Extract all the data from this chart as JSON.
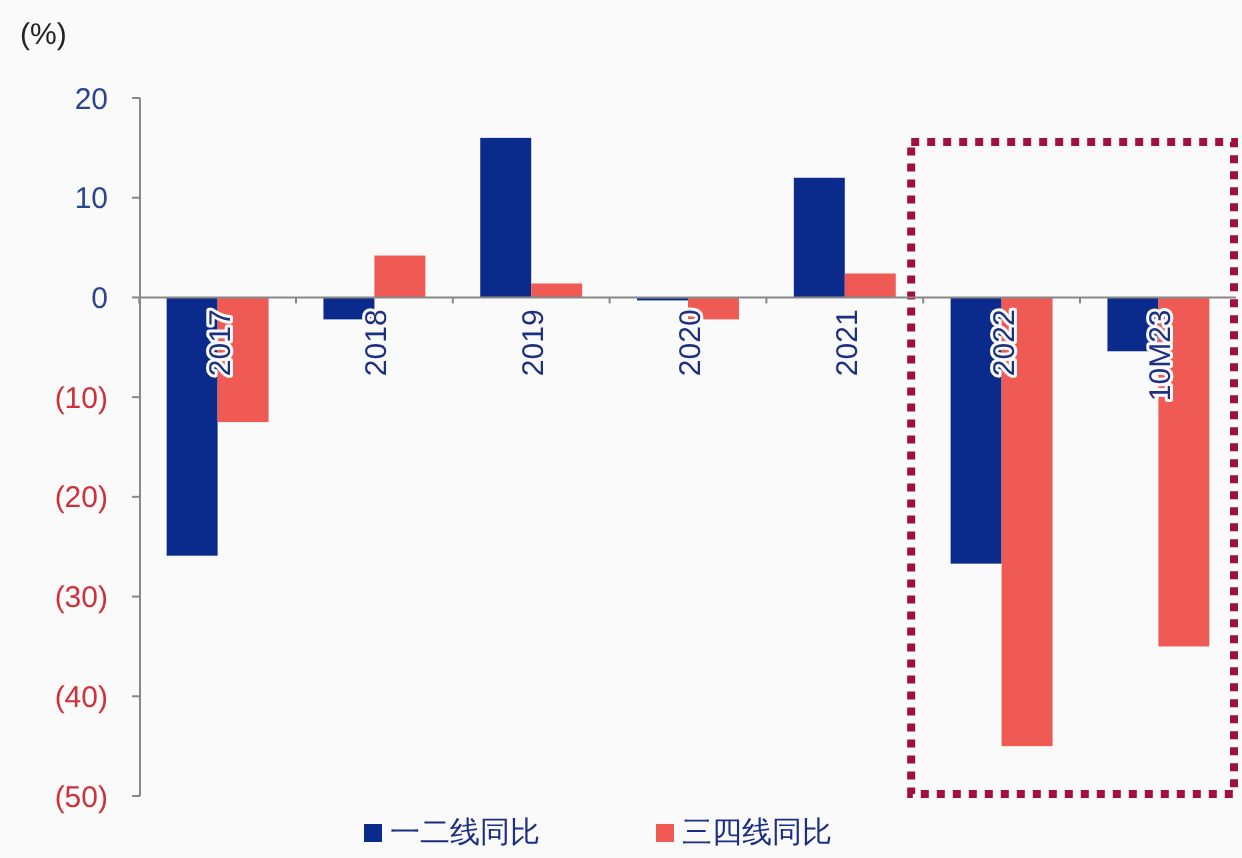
{
  "chart_data": {
    "type": "bar",
    "ylabel": "(%)",
    "categories": [
      "2017",
      "2018",
      "2019",
      "2020",
      "2021",
      "2022",
      "10M23"
    ],
    "series": [
      {
        "name": "一二线同比",
        "color": "#0a2a8c",
        "values": [
          -25.9,
          -2.2,
          16,
          -0.3,
          12,
          -26.7,
          -5.4
        ]
      },
      {
        "name": "三四线同比",
        "color": "#ef5a55",
        "values": [
          -12.5,
          4.2,
          1.4,
          -2.2,
          2.4,
          -45,
          -35
        ]
      }
    ],
    "ylim": [
      -50,
      20
    ],
    "yticks": [
      20,
      10,
      0,
      {
        "value": -10,
        "label": "(10)"
      },
      {
        "value": -20,
        "label": "(20)"
      },
      {
        "value": -30,
        "label": "(30)"
      },
      {
        "value": -40,
        "label": "(40)"
      },
      {
        "value": -50,
        "label": "(50)"
      }
    ],
    "legend": "bottom",
    "grid": false
  }
}
